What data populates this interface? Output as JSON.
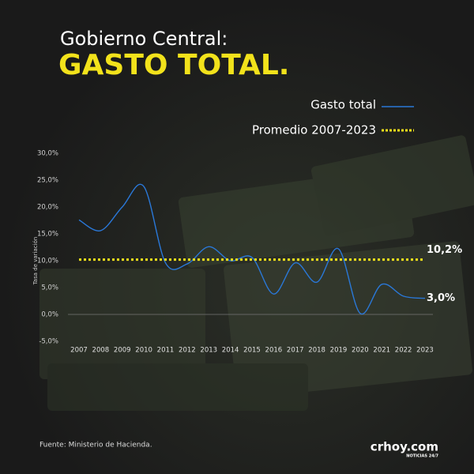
{
  "chart_data": {
    "type": "line",
    "title": "Gobierno Central:",
    "subtitle": "GASTO TOTAL.",
    "y_label": "Tasa de variación",
    "source": "Fuente: Ministerio de Hacienda.",
    "brand": "crhoy.com",
    "brand_tagline": "NOTICIAS 24/7",
    "categories": [
      "2007",
      "2008",
      "2009",
      "2010",
      "2011",
      "2012",
      "2013",
      "2014",
      "2015",
      "2016",
      "2017",
      "2018",
      "2019",
      "2020",
      "2021",
      "2022",
      "2023"
    ],
    "series": [
      {
        "name": "Gasto total",
        "color": "#2a78d8",
        "style": "solid",
        "values": [
          17.6,
          15.6,
          20.0,
          23.8,
          9.6,
          9.4,
          12.6,
          10.0,
          10.6,
          3.8,
          9.6,
          6.0,
          12.2,
          0.2,
          5.6,
          3.4,
          3.0
        ],
        "value_labels": [
          null,
          null,
          null,
          null,
          null,
          null,
          null,
          null,
          null,
          null,
          null,
          null,
          null,
          null,
          null,
          null,
          "3,0%"
        ]
      },
      {
        "name": "Promedio 2007-2023",
        "color": "#f2e21b",
        "style": "dotted",
        "values": [
          10.2,
          10.2,
          10.2,
          10.2,
          10.2,
          10.2,
          10.2,
          10.2,
          10.2,
          10.2,
          10.2,
          10.2,
          10.2,
          10.2,
          10.2,
          10.2,
          10.2
        ],
        "value_labels": [
          null,
          null,
          null,
          null,
          null,
          null,
          null,
          null,
          null,
          null,
          null,
          null,
          null,
          null,
          null,
          null,
          "10,2%"
        ]
      }
    ],
    "ylim": [
      -5,
      30
    ],
    "yticks": [
      {
        "value": -5,
        "label": "-5,0%"
      },
      {
        "value": 0,
        "label": "0,0%"
      },
      {
        "value": 5,
        "label": "5,0%"
      },
      {
        "value": 10,
        "label": "10,0%"
      },
      {
        "value": 15,
        "label": "15,0%"
      },
      {
        "value": 20,
        "label": "20,0%"
      },
      {
        "value": 25,
        "label": "25,0%"
      },
      {
        "value": 30,
        "label": "30,0%"
      }
    ],
    "grid": false,
    "legend": "top-right"
  }
}
